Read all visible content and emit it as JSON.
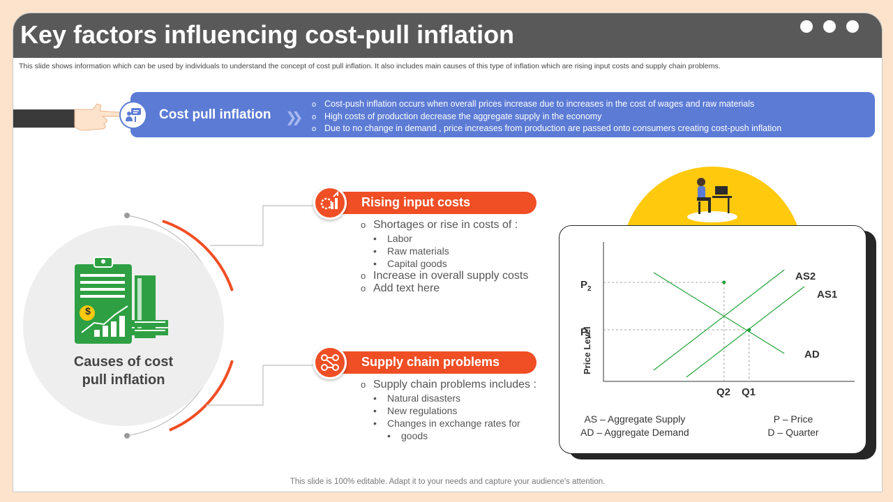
{
  "header": {
    "title": "Key factors influencing cost-pull inflation",
    "subtitle": "This slide shows information which can be used by individuals to understand the concept of cost pull inflation. It also includes main causes of this type of inflation which are rising input costs and supply chain problems."
  },
  "banner": {
    "title": "Cost pull inflation",
    "points": [
      "Cost-push inflation occurs when overall prices increase due to increases in the cost of wages and raw materials",
      "High costs of production decrease the aggregate supply  in the economy",
      "Due to no change in demand , price increases from production are passed onto consumers creating cost-push inflation"
    ]
  },
  "causes": {
    "title_line1": "Causes of cost",
    "title_line2": "pull inflation",
    "coin_symbol": "$"
  },
  "rising_input": {
    "label": "Rising input costs",
    "lead": "Shortages or rise in costs of :",
    "items": [
      "Labor",
      "Raw materials",
      "Capital goods"
    ],
    "extra": [
      "Increase  in overall supply costs",
      "Add text here"
    ]
  },
  "supply_chain": {
    "label": "Supply chain problems",
    "lead": "Supply chain problems includes :",
    "items": [
      "Natural disasters",
      "New regulations",
      "Changes in exchange rates for",
      "goods"
    ]
  },
  "chart_data": {
    "type": "line",
    "ylabel": "Price Level",
    "y_ticks": [
      "P",
      "P"
    ],
    "y_tick_subs": [
      "2",
      "1"
    ],
    "x_ticks": [
      "Q2",
      "Q1"
    ],
    "series": [
      {
        "name": "AS2",
        "points": [
          [
            0.2,
            0.08
          ],
          [
            0.72,
            0.8
          ]
        ]
      },
      {
        "name": "AS1",
        "points": [
          [
            0.33,
            0.03
          ],
          [
            0.8,
            0.68
          ]
        ]
      },
      {
        "name": "AD",
        "points": [
          [
            0.2,
            0.78
          ],
          [
            0.72,
            0.2
          ]
        ]
      }
    ],
    "equilibria": [
      {
        "x": 0.48,
        "y": 0.71,
        "x_label": "Q2",
        "y_label": "P2"
      },
      {
        "x": 0.58,
        "y": 0.37,
        "x_label": "Q1",
        "y_label": "P1"
      }
    ],
    "line_color": "#21a336",
    "legend_left": [
      "AS – Aggregate Supply",
      "AD – Aggregate Demand"
    ],
    "legend_right": [
      "P – Price",
      "D – Quarter"
    ]
  },
  "footer": "This slide is 100% editable. Adapt it to your needs and capture your audience's attention.",
  "colors": {
    "accent_orange": "#f04e24",
    "banner_blue": "#5b7bd5",
    "icon_green": "#2ea043",
    "yellow": "#ffc90e"
  }
}
